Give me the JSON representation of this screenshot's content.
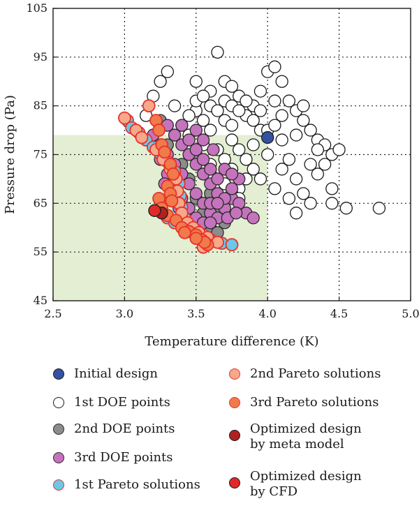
{
  "chart_data": {
    "type": "scatter",
    "xlabel": "Temperature difference (K)",
    "ylabel": "Pressure drop (Pa)",
    "xlim": [
      2.5,
      5.0
    ],
    "ylim": [
      45,
      105
    ],
    "xticks": [
      "2.5",
      "3.0",
      "3.5",
      "4.0",
      "4.5",
      "5.0"
    ],
    "yticks": [
      "45",
      "55",
      "65",
      "75",
      "85",
      "95",
      "105"
    ],
    "grid": true,
    "feasible_region": {
      "x": [
        2.5,
        4.0
      ],
      "y": [
        45,
        79
      ],
      "color": "#e3eed3"
    },
    "legend_placement": "below",
    "series": [
      {
        "name": "1st DOE points",
        "fill": "#ffffff",
        "stroke": "#1a1a1a",
        "points": [
          [
            3.4,
            81
          ],
          [
            3.5,
            84
          ],
          [
            3.6,
            88
          ],
          [
            3.7,
            90
          ],
          [
            3.8,
            87
          ],
          [
            3.85,
            83
          ],
          [
            3.9,
            85
          ],
          [
            3.95,
            88
          ],
          [
            4.0,
            92
          ],
          [
            4.05,
            93
          ],
          [
            4.1,
            90
          ],
          [
            4.15,
            86
          ],
          [
            4.2,
            84
          ],
          [
            4.25,
            82
          ],
          [
            4.3,
            80
          ],
          [
            4.35,
            78
          ],
          [
            4.4,
            77
          ],
          [
            4.45,
            75
          ],
          [
            4.5,
            76
          ],
          [
            3.65,
            96
          ],
          [
            3.5,
            90
          ],
          [
            3.3,
            92
          ],
          [
            3.25,
            90
          ],
          [
            3.6,
            80
          ],
          [
            3.7,
            82
          ],
          [
            3.75,
            78
          ],
          [
            3.8,
            76
          ],
          [
            3.85,
            74
          ],
          [
            3.9,
            72
          ],
          [
            3.95,
            70
          ],
          [
            4.05,
            68
          ],
          [
            4.1,
            72
          ],
          [
            4.15,
            74
          ],
          [
            4.2,
            70
          ],
          [
            4.25,
            67
          ],
          [
            4.3,
            65
          ],
          [
            4.35,
            71
          ],
          [
            4.4,
            73
          ],
          [
            4.45,
            68
          ],
          [
            4.45,
            65
          ],
          [
            4.55,
            64
          ],
          [
            4.78,
            64
          ],
          [
            4.2,
            63
          ],
          [
            4.15,
            66
          ],
          [
            4.0,
            75
          ],
          [
            3.95,
            80
          ],
          [
            3.9,
            77
          ],
          [
            3.85,
            70
          ],
          [
            3.8,
            68
          ],
          [
            3.75,
            72
          ],
          [
            3.7,
            74
          ],
          [
            3.65,
            76
          ],
          [
            3.6,
            73
          ],
          [
            3.55,
            77
          ],
          [
            3.45,
            79
          ],
          [
            3.5,
            86
          ],
          [
            3.55,
            87
          ],
          [
            3.6,
            85
          ],
          [
            3.65,
            84
          ],
          [
            3.7,
            86
          ],
          [
            3.75,
            85
          ],
          [
            3.8,
            84
          ],
          [
            3.9,
            82
          ],
          [
            4.0,
            80
          ],
          [
            4.05,
            81
          ],
          [
            4.1,
            78
          ],
          [
            4.2,
            79
          ],
          [
            4.3,
            73
          ],
          [
            4.35,
            76
          ],
          [
            3.6,
            71
          ],
          [
            3.7,
            69
          ],
          [
            3.75,
            67
          ],
          [
            3.8,
            66
          ],
          [
            3.2,
            87
          ],
          [
            3.15,
            83
          ],
          [
            3.35,
            85
          ],
          [
            3.45,
            83
          ],
          [
            3.55,
            82
          ],
          [
            3.75,
            81
          ],
          [
            3.95,
            84
          ],
          [
            4.05,
            86
          ],
          [
            4.1,
            83
          ],
          [
            4.25,
            85
          ],
          [
            3.75,
            89
          ],
          [
            3.85,
            86
          ]
        ]
      },
      {
        "name": "2nd DOE points",
        "fill": "#8c8c8c",
        "stroke": "#2a2a2a",
        "points": [
          [
            3.25,
            82
          ],
          [
            3.35,
            79
          ],
          [
            3.4,
            73
          ],
          [
            3.45,
            70
          ],
          [
            3.5,
            66
          ],
          [
            3.55,
            63
          ],
          [
            3.6,
            60
          ],
          [
            3.65,
            59
          ],
          [
            3.7,
            61
          ],
          [
            3.5,
            75
          ],
          [
            3.55,
            71
          ],
          [
            3.45,
            62
          ],
          [
            3.4,
            60
          ],
          [
            3.6,
            67
          ],
          [
            3.65,
            64
          ],
          [
            3.3,
            77
          ]
        ]
      },
      {
        "name": "3rd DOE points",
        "fill": "#c673bd",
        "stroke": "#2a2a2a",
        "points": [
          [
            3.2,
            79
          ],
          [
            3.25,
            77
          ],
          [
            3.3,
            75
          ],
          [
            3.35,
            73
          ],
          [
            3.4,
            71
          ],
          [
            3.45,
            69
          ],
          [
            3.5,
            67
          ],
          [
            3.55,
            65
          ],
          [
            3.6,
            63
          ],
          [
            3.65,
            62
          ],
          [
            3.7,
            64
          ],
          [
            3.75,
            66
          ],
          [
            3.8,
            65
          ],
          [
            3.85,
            63
          ],
          [
            3.9,
            62
          ],
          [
            3.3,
            81
          ],
          [
            3.35,
            79
          ],
          [
            3.4,
            77
          ],
          [
            3.45,
            75
          ],
          [
            3.5,
            73
          ],
          [
            3.55,
            71
          ],
          [
            3.6,
            69
          ],
          [
            3.65,
            67
          ],
          [
            3.7,
            66
          ],
          [
            3.75,
            68
          ],
          [
            3.8,
            70
          ],
          [
            3.4,
            81
          ],
          [
            3.45,
            78
          ],
          [
            3.5,
            76
          ],
          [
            3.55,
            74
          ],
          [
            3.6,
            72
          ],
          [
            3.65,
            70
          ],
          [
            3.7,
            72
          ],
          [
            3.75,
            71
          ],
          [
            3.35,
            68
          ],
          [
            3.4,
            66
          ],
          [
            3.45,
            64
          ],
          [
            3.5,
            62
          ],
          [
            3.55,
            61
          ],
          [
            3.6,
            61
          ],
          [
            3.3,
            71
          ],
          [
            3.35,
            70
          ],
          [
            3.25,
            74
          ],
          [
            3.28,
            69
          ],
          [
            3.32,
            66
          ],
          [
            3.38,
            64
          ],
          [
            3.48,
            60
          ],
          [
            3.42,
            62
          ],
          [
            3.38,
            61
          ],
          [
            3.6,
            65
          ],
          [
            3.65,
            65
          ],
          [
            3.72,
            62
          ],
          [
            3.78,
            63
          ],
          [
            3.5,
            80
          ],
          [
            3.55,
            78
          ],
          [
            3.62,
            76
          ]
        ]
      },
      {
        "name": "1st Pareto solutions",
        "fill": "#6cc7e8",
        "stroke": "#e8322a",
        "points": [
          [
            3.02,
            82
          ],
          [
            3.05,
            80.5
          ],
          [
            3.1,
            79.5
          ],
          [
            3.15,
            78
          ],
          [
            3.2,
            76.5
          ],
          [
            3.25,
            75.2
          ],
          [
            3.3,
            73.5
          ],
          [
            3.35,
            71.5
          ],
          [
            3.38,
            69
          ],
          [
            3.39,
            66.5
          ],
          [
            3.4,
            64.2
          ],
          [
            3.42,
            62
          ],
          [
            3.45,
            60.5
          ],
          [
            3.5,
            59.5
          ],
          [
            3.55,
            58.5
          ],
          [
            3.6,
            57.5
          ],
          [
            3.68,
            56.8
          ],
          [
            3.75,
            56.5
          ],
          [
            3.3,
            62
          ],
          [
            3.35,
            61
          ]
        ]
      },
      {
        "name": "2nd Pareto solutions",
        "fill": "#f5a98a",
        "stroke": "#e8322a",
        "points": [
          [
            3.0,
            82.5
          ],
          [
            3.08,
            80
          ],
          [
            3.12,
            78.5
          ],
          [
            3.17,
            85
          ],
          [
            3.22,
            76
          ],
          [
            3.27,
            74
          ],
          [
            3.32,
            72
          ],
          [
            3.36,
            70
          ],
          [
            3.37,
            67.5
          ],
          [
            3.38,
            65
          ],
          [
            3.4,
            63
          ],
          [
            3.44,
            61
          ],
          [
            3.48,
            60
          ],
          [
            3.52,
            59
          ],
          [
            3.58,
            58
          ],
          [
            3.65,
            57
          ],
          [
            3.55,
            56
          ]
        ]
      },
      {
        "name": "3rd Pareto solutions",
        "fill": "#f07a4a",
        "stroke": "#e8322a",
        "points": [
          [
            3.22,
            82
          ],
          [
            3.24,
            80
          ],
          [
            3.26,
            77
          ],
          [
            3.28,
            75.5
          ],
          [
            3.32,
            73
          ],
          [
            3.34,
            71
          ],
          [
            3.3,
            68.5
          ],
          [
            3.32,
            67
          ],
          [
            3.33,
            65.5
          ],
          [
            3.24,
            66
          ],
          [
            3.26,
            64
          ],
          [
            3.3,
            62.5
          ],
          [
            3.36,
            61.5
          ],
          [
            3.4,
            60
          ],
          [
            3.45,
            59.2
          ],
          [
            3.5,
            58.5
          ],
          [
            3.54,
            57.5
          ],
          [
            3.58,
            56.5
          ],
          [
            3.56,
            57
          ],
          [
            3.5,
            57.8
          ],
          [
            3.42,
            59
          ]
        ]
      },
      {
        "name": "Initial design",
        "fill": "#3552a2",
        "stroke": "#1a1a1a",
        "points": [
          [
            4.0,
            78.5
          ]
        ]
      },
      {
        "name": "Optimized design by meta model",
        "fill": "#b22020",
        "stroke": "#1a1a1a",
        "points": [
          [
            3.26,
            63
          ]
        ]
      },
      {
        "name": "Optimized design by CFD",
        "fill": "#e02a2a",
        "stroke": "#1a1a1a",
        "points": [
          [
            3.21,
            63.5
          ]
        ]
      }
    ]
  },
  "legend": {
    "left": [
      {
        "label": "Initial design",
        "fill": "#3552a2",
        "stroke": "#1a1a1a"
      },
      {
        "label": "1st DOE points",
        "fill": "#ffffff",
        "stroke": "#1a1a1a"
      },
      {
        "label": "2nd DOE points",
        "fill": "#8c8c8c",
        "stroke": "#2a2a2a"
      },
      {
        "label": "3rd DOE points",
        "fill": "#c673bd",
        "stroke": "#2a2a2a"
      },
      {
        "label": "1st Pareto solutions",
        "fill": "#6cc7e8",
        "stroke": "#e8322a"
      }
    ],
    "right": [
      {
        "label": "2nd Pareto solutions",
        "fill": "#f5a98a",
        "stroke": "#e8322a"
      },
      {
        "label": "3rd Pareto solutions",
        "fill": "#f07a4a",
        "stroke": "#e8322a"
      },
      {
        "label": "Optimized design",
        "label2": "by meta model",
        "fill": "#b22020",
        "stroke": "#1a1a1a"
      },
      {
        "label": "Optimized design",
        "label2": "by CFD",
        "fill": "#e02a2a",
        "stroke": "#1a1a1a"
      }
    ]
  }
}
